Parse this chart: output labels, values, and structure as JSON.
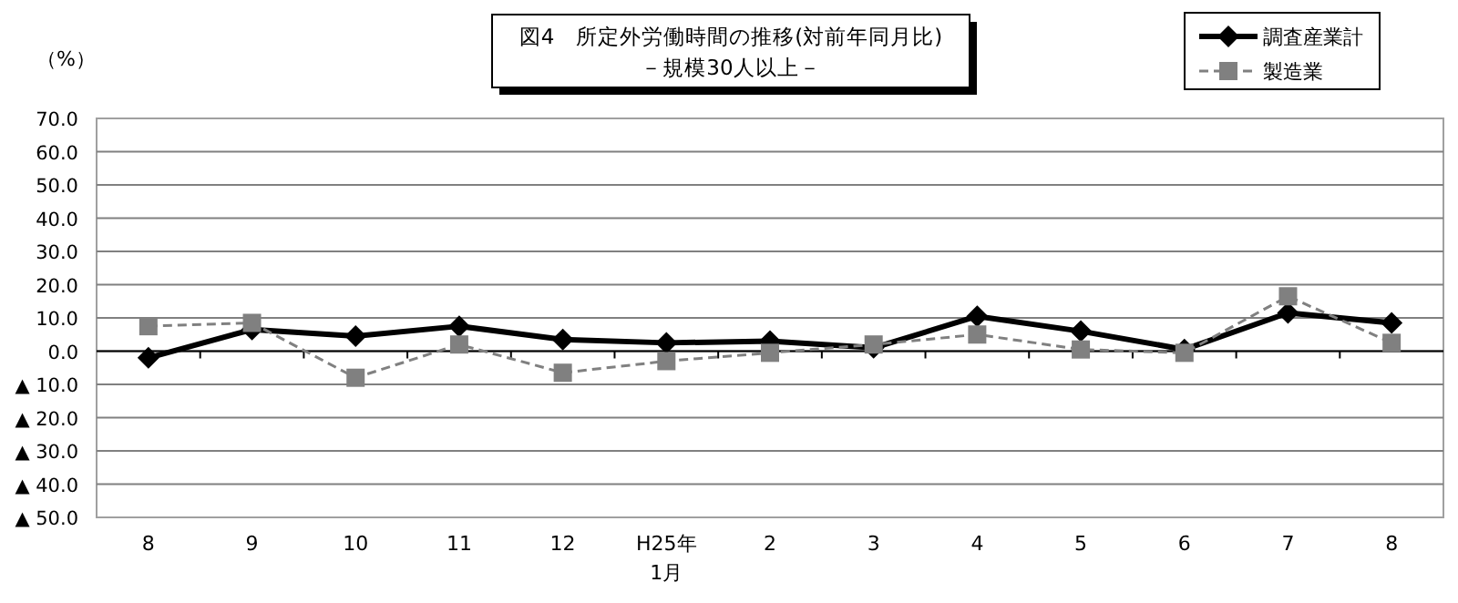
{
  "chart_data": {
    "type": "line",
    "title": "図4　所定外労働時間の推移(対前年同月比)",
    "subtitle": "－規模30人以上－",
    "ylabel": "（%）",
    "categories": [
      "8",
      "9",
      "10",
      "11",
      "12",
      "H25年\n1月",
      "2",
      "3",
      "4",
      "5",
      "6",
      "7",
      "8"
    ],
    "series": [
      {
        "name": "調査産業計",
        "color": "#000000",
        "marker": "diamond",
        "line_style": "solid",
        "values": [
          -2,
          6.5,
          4.5,
          7.5,
          3.5,
          2.5,
          3,
          1,
          10.5,
          6,
          0.5,
          11.5,
          8.5
        ]
      },
      {
        "name": "製造業",
        "color": "#808080",
        "marker": "square",
        "line_style": "dashed",
        "values": [
          7.5,
          8.5,
          -8,
          2,
          -6.5,
          -3,
          -0.5,
          2,
          5,
          0.5,
          -0.5,
          16.5,
          2.5
        ]
      }
    ],
    "ylim": [
      -50,
      70
    ],
    "yticks": [
      {
        "value": -50,
        "label": "▲ 50.0"
      },
      {
        "value": -40,
        "label": "▲ 40.0"
      },
      {
        "value": -30,
        "label": "▲ 30.0"
      },
      {
        "value": -20,
        "label": "▲ 20.0"
      },
      {
        "value": -10,
        "label": "▲ 10.0"
      },
      {
        "value": 0,
        "label": "0.0"
      },
      {
        "value": 10,
        "label": "10.0"
      },
      {
        "value": 20,
        "label": "20.0"
      },
      {
        "value": 30,
        "label": "30.0"
      },
      {
        "value": 40,
        "label": "40.0"
      },
      {
        "value": 50,
        "label": "50.0"
      },
      {
        "value": 60,
        "label": "60.0"
      },
      {
        "value": 70,
        "label": "70.0"
      }
    ],
    "grid": "y",
    "legend": "top right"
  }
}
